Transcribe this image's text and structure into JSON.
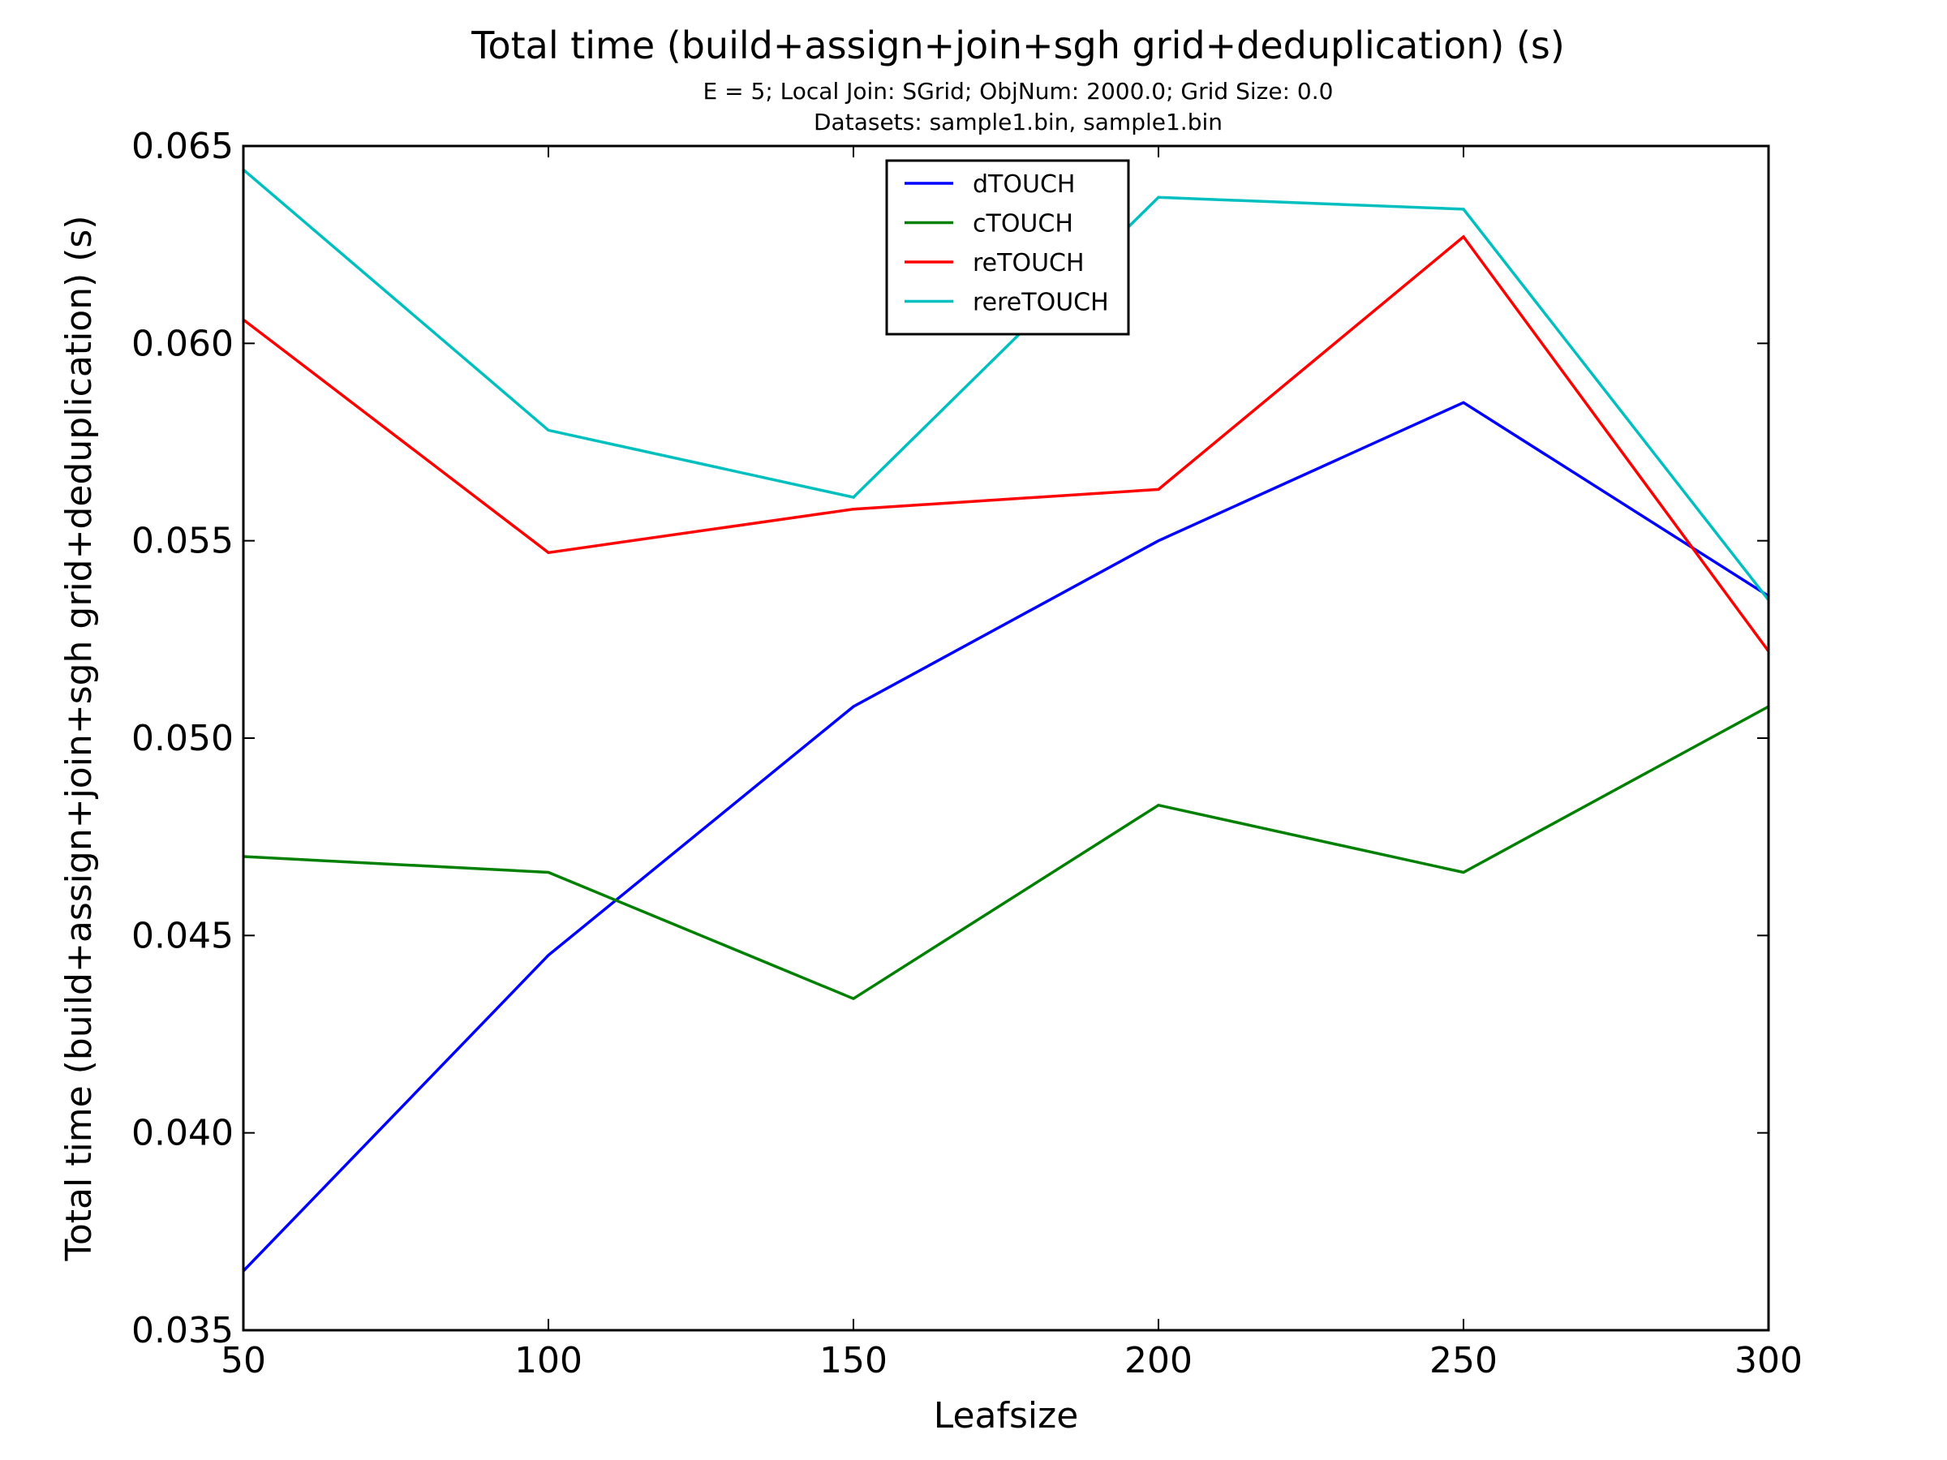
{
  "chart_data": {
    "type": "line",
    "title": "Total time (build+assign+join+sgh grid+deduplication) (s)",
    "subtitle_lines": [
      "E = 5; Local Join: SGrid; ObjNum: 2000.0; Grid Size: 0.0",
      "Datasets: sample1.bin, sample1.bin"
    ],
    "xlabel": "Leafsize",
    "ylabel": "Total time (build+assign+join+sgh grid+deduplication) (s)",
    "x": [
      50,
      100,
      150,
      200,
      250,
      300
    ],
    "xlim": [
      50,
      300
    ],
    "ylim": [
      0.035,
      0.065
    ],
    "xticks": [
      50,
      100,
      150,
      200,
      250,
      300
    ],
    "xtick_labels": [
      "50",
      "100",
      "150",
      "200",
      "250",
      "300"
    ],
    "yticks": [
      0.035,
      0.04,
      0.045,
      0.05,
      0.055,
      0.06,
      0.065
    ],
    "ytick_labels": [
      "0.035",
      "0.040",
      "0.045",
      "0.050",
      "0.055",
      "0.060",
      "0.065"
    ],
    "grid": false,
    "legend_position": "top-center",
    "series": [
      {
        "name": "dTOUCH",
        "color": "#0000ff",
        "values": [
          0.0365,
          0.0445,
          0.0508,
          0.055,
          0.0585,
          0.0536
        ]
      },
      {
        "name": "cTOUCH",
        "color": "#008000",
        "values": [
          0.047,
          0.0466,
          0.0434,
          0.0483,
          0.0466,
          0.0508
        ]
      },
      {
        "name": "reTOUCH",
        "color": "#ff0000",
        "values": [
          0.0606,
          0.0547,
          0.0558,
          0.0563,
          0.0627,
          0.0522
        ]
      },
      {
        "name": "rereTOUCH",
        "color": "#00bfbf",
        "values": [
          0.0644,
          0.0578,
          0.0561,
          0.0637,
          0.0634,
          0.0535
        ]
      }
    ]
  }
}
